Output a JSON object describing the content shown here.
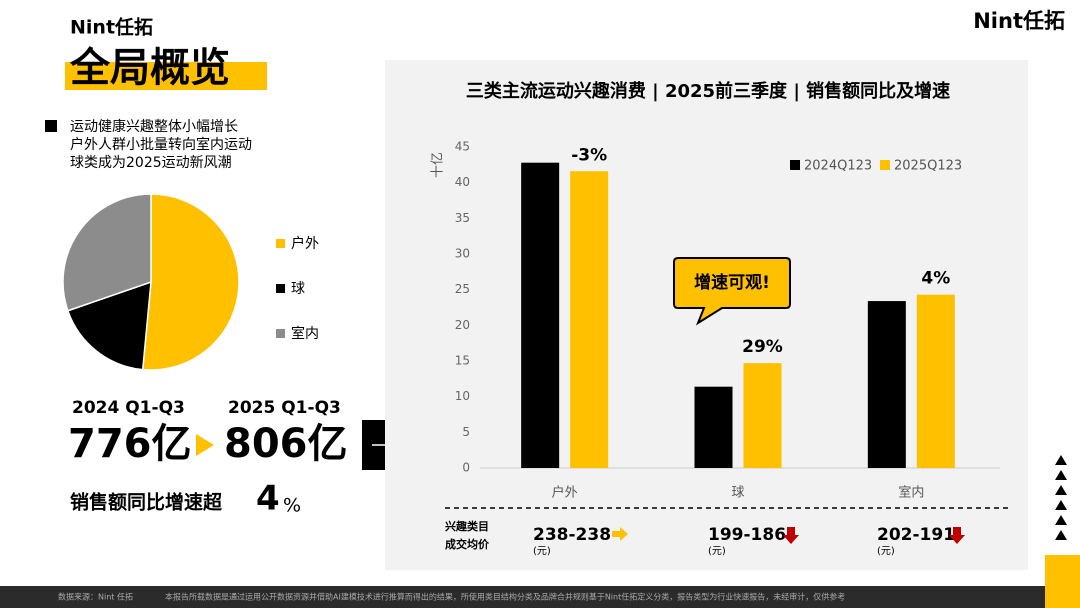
{
  "header": {
    "logo": "Nint任拓",
    "title": "全局概览"
  },
  "highlights": [
    "运动健康兴趣整体小幅增长",
    "户外人群小批量转向室内运动",
    "球类成为2025运动新风潮"
  ],
  "chart_data": [
    {
      "type": "pie",
      "categories": [
        "户外",
        "球",
        "室内"
      ],
      "values": [
        51.5,
        18.2,
        30.3
      ],
      "colors": [
        "#ffc000",
        "#000000",
        "#8c8c8c"
      ]
    },
    {
      "type": "bar",
      "title": "三类主流运动兴趣消费 | 2025前三季度 | 销售额同比及增速",
      "y_label": "十亿",
      "categories": [
        "户外",
        "球",
        "室内"
      ],
      "series": [
        {
          "name": "2024Q123",
          "color": "#000000",
          "values": [
            42.8,
            11.4,
            23.4
          ]
        },
        {
          "name": "2025Q123",
          "color": "#ffc000",
          "values": [
            41.6,
            14.7,
            24.3
          ]
        }
      ],
      "growth_labels": [
        "-3%",
        "29%",
        "4%"
      ],
      "annotation": "增速可观!",
      "ylim": [
        0,
        45
      ],
      "yticks": [
        0,
        5,
        10,
        15,
        20,
        25,
        30,
        35,
        40,
        45
      ],
      "grid": false
    }
  ],
  "summary": {
    "period_2024": "2024 Q1-Q3",
    "value_2024": "776亿",
    "period_2025": "2025 Q1-Q3",
    "value_2025": "806亿",
    "growth_text": "销售额同比增速超",
    "growth_number": "4",
    "growth_unit": "%"
  },
  "price_row": {
    "label": [
      "兴趣类目",
      "成交均价"
    ],
    "items": [
      {
        "range": "238-238",
        "unit": "(元)"
      },
      {
        "range": "199-186",
        "unit": "(元)"
      },
      {
        "range": "202-191",
        "unit": "(元)"
      }
    ]
  },
  "footer": {
    "source": "数据来源：Nint 任拓",
    "note": "本报告所载数据是通过运用公开数据资源并借助AI建模技术进行推算而得出的结果，所使用类目结构分类及品牌合并规则基于Nint任拓定义分类，报告类型为行业快速报告，未经审计，仅供参考"
  }
}
